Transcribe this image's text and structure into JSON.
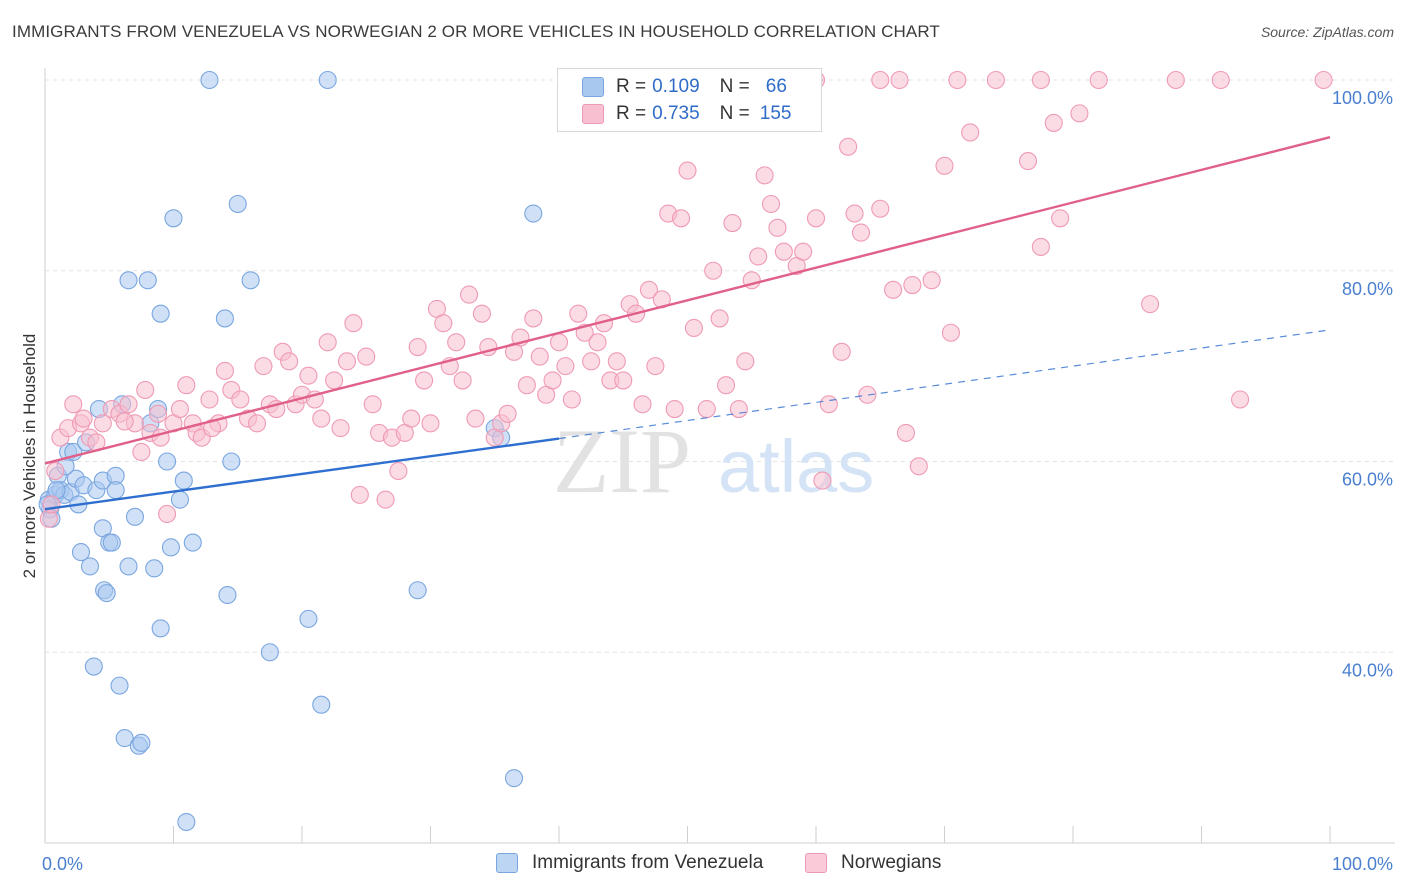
{
  "title": "IMMIGRANTS FROM VENEZUELA VS NORWEGIAN 2 OR MORE VEHICLES IN HOUSEHOLD CORRELATION CHART",
  "source": "Source: ZipAtlas.com",
  "watermark": {
    "zip": "ZIP",
    "atlas": "atlas"
  },
  "legend": {
    "rows": [
      {
        "r_label": "R =",
        "r_value": "0.109",
        "n_label": "N =",
        "n_value": "66"
      },
      {
        "r_label": "R =",
        "r_value": "0.735",
        "n_label": "N =",
        "n_value": "155"
      }
    ]
  },
  "colors": {
    "blue_fill": "#a9c8f0",
    "blue_stroke": "#7aa6e0",
    "blue_line": "#2f6fd0",
    "pink_fill": "#f7bfd0",
    "pink_stroke": "#ef9ab5",
    "pink_line": "#e0608a",
    "tick_text": "#4a7fd0",
    "grid": "#e3e3e3"
  },
  "chart_data": {
    "type": "scatter",
    "title": "IMMIGRANTS FROM VENEZUELA VS NORWEGIAN 2 OR MORE VEHICLES IN HOUSEHOLD CORRELATION CHART",
    "xlabel": "",
    "ylabel": "2 or more Vehicles in Household",
    "xlim": [
      0,
      100
    ],
    "ylim": [
      20,
      100
    ],
    "x_tick_labels": [
      "0.0%",
      "100.0%"
    ],
    "y_ticks": [
      40,
      60,
      80,
      100
    ],
    "y_tick_labels": [
      "40.0%",
      "60.0%",
      "80.0%",
      "100.0%"
    ],
    "grid": true,
    "legend_position": "bottom",
    "series": [
      {
        "name": "Immigrants from Venezuela",
        "color": "#a9c8f0",
        "trend": {
          "x": [
            0,
            40
          ],
          "y": [
            55.0,
            62.4
          ],
          "dashed_to": [
            100,
            73.8
          ]
        },
        "points": [
          [
            0.3,
            56.0
          ],
          [
            0.4,
            55.0
          ],
          [
            0.5,
            54.0
          ],
          [
            0.8,
            56.5
          ],
          [
            1.0,
            58.5
          ],
          [
            1.2,
            57.0
          ],
          [
            1.5,
            56.5
          ],
          [
            1.8,
            61.0
          ],
          [
            2.0,
            56.8
          ],
          [
            2.2,
            61.0
          ],
          [
            2.4,
            58.2
          ],
          [
            2.6,
            55.5
          ],
          [
            2.8,
            50.5
          ],
          [
            3.0,
            57.5
          ],
          [
            3.2,
            62.0
          ],
          [
            3.5,
            49.0
          ],
          [
            3.8,
            38.5
          ],
          [
            4.0,
            57.0
          ],
          [
            4.2,
            65.5
          ],
          [
            4.5,
            58.0
          ],
          [
            4.5,
            53.0
          ],
          [
            4.6,
            46.5
          ],
          [
            4.8,
            46.2
          ],
          [
            5.0,
            51.5
          ],
          [
            5.2,
            51.5
          ],
          [
            5.5,
            58.5
          ],
          [
            5.5,
            57.0
          ],
          [
            5.8,
            36.5
          ],
          [
            6.0,
            66.0
          ],
          [
            6.2,
            31.0
          ],
          [
            6.5,
            79.0
          ],
          [
            6.5,
            49.0
          ],
          [
            7.0,
            54.2
          ],
          [
            7.3,
            30.2
          ],
          [
            7.5,
            30.5
          ],
          [
            8.0,
            79.0
          ],
          [
            8.2,
            64.0
          ],
          [
            8.5,
            48.8
          ],
          [
            8.8,
            65.5
          ],
          [
            9.0,
            75.5
          ],
          [
            9.0,
            42.5
          ],
          [
            9.5,
            60.0
          ],
          [
            9.8,
            51.0
          ],
          [
            10.0,
            85.5
          ],
          [
            10.5,
            56.0
          ],
          [
            10.8,
            58.0
          ],
          [
            11.0,
            22.2
          ],
          [
            11.5,
            51.5
          ],
          [
            12.8,
            100.0
          ],
          [
            14.0,
            75.0
          ],
          [
            14.2,
            46.0
          ],
          [
            14.5,
            60.0
          ],
          [
            15.0,
            87.0
          ],
          [
            16.0,
            79.0
          ],
          [
            17.5,
            40.0
          ],
          [
            20.5,
            43.5
          ],
          [
            21.5,
            34.5
          ],
          [
            22.0,
            100.0
          ],
          [
            29.0,
            46.5
          ],
          [
            35.0,
            63.5
          ],
          [
            35.5,
            62.5
          ],
          [
            36.5,
            26.8
          ],
          [
            38.0,
            86.0
          ],
          [
            0.2,
            55.5
          ],
          [
            1.6,
            59.5
          ],
          [
            0.9,
            57.0
          ]
        ]
      },
      {
        "name": "Norwegians",
        "color": "#f7bfd0",
        "trend": {
          "x": [
            0,
            100
          ],
          "y": [
            59.8,
            94.0
          ]
        },
        "points": [
          [
            0.3,
            54.0
          ],
          [
            0.5,
            55.5
          ],
          [
            0.8,
            59.0
          ],
          [
            1.2,
            62.5
          ],
          [
            1.8,
            63.5
          ],
          [
            2.2,
            66.0
          ],
          [
            2.8,
            64.0
          ],
          [
            3.5,
            62.5
          ],
          [
            4.0,
            62.0
          ],
          [
            4.5,
            64.0
          ],
          [
            5.2,
            65.5
          ],
          [
            5.8,
            65.0
          ],
          [
            6.5,
            66.0
          ],
          [
            7.0,
            64.0
          ],
          [
            7.5,
            61.0
          ],
          [
            7.8,
            67.5
          ],
          [
            8.2,
            63.0
          ],
          [
            8.8,
            65.0
          ],
          [
            9.0,
            62.5
          ],
          [
            9.5,
            54.5
          ],
          [
            10.0,
            64.0
          ],
          [
            10.5,
            65.5
          ],
          [
            11.0,
            68.0
          ],
          [
            11.5,
            64.0
          ],
          [
            11.8,
            63.0
          ],
          [
            12.2,
            62.5
          ],
          [
            12.8,
            66.5
          ],
          [
            13.5,
            64.0
          ],
          [
            14.0,
            69.5
          ],
          [
            14.5,
            67.5
          ],
          [
            15.2,
            66.5
          ],
          [
            15.8,
            64.5
          ],
          [
            16.5,
            64.0
          ],
          [
            17.0,
            70.0
          ],
          [
            17.5,
            66.0
          ],
          [
            18.0,
            65.5
          ],
          [
            18.5,
            71.5
          ],
          [
            19.0,
            70.5
          ],
          [
            19.5,
            66.0
          ],
          [
            20.0,
            67.0
          ],
          [
            20.5,
            69.0
          ],
          [
            21.0,
            66.5
          ],
          [
            21.5,
            64.5
          ],
          [
            22.0,
            72.5
          ],
          [
            22.5,
            68.5
          ],
          [
            23.0,
            63.5
          ],
          [
            23.5,
            70.5
          ],
          [
            24.0,
            74.5
          ],
          [
            24.5,
            56.5
          ],
          [
            25.0,
            71.0
          ],
          [
            25.5,
            66.0
          ],
          [
            26.0,
            63.0
          ],
          [
            26.5,
            56.0
          ],
          [
            27.0,
            62.5
          ],
          [
            27.5,
            59.0
          ],
          [
            28.0,
            63.0
          ],
          [
            28.5,
            64.5
          ],
          [
            29.0,
            72.0
          ],
          [
            29.5,
            68.5
          ],
          [
            30.0,
            64.0
          ],
          [
            30.5,
            76.0
          ],
          [
            31.0,
            74.5
          ],
          [
            31.5,
            70.0
          ],
          [
            32.0,
            72.5
          ],
          [
            32.5,
            68.5
          ],
          [
            33.0,
            77.5
          ],
          [
            33.5,
            64.5
          ],
          [
            34.0,
            75.5
          ],
          [
            34.5,
            72.0
          ],
          [
            35.0,
            62.5
          ],
          [
            35.5,
            64.0
          ],
          [
            36.0,
            65.0
          ],
          [
            36.5,
            71.5
          ],
          [
            37.0,
            73.0
          ],
          [
            37.5,
            68.0
          ],
          [
            38.0,
            75.0
          ],
          [
            38.5,
            71.0
          ],
          [
            39.0,
            67.0
          ],
          [
            39.5,
            68.5
          ],
          [
            40.0,
            72.5
          ],
          [
            40.5,
            70.0
          ],
          [
            41.0,
            66.5
          ],
          [
            41.5,
            75.5
          ],
          [
            42.0,
            73.5
          ],
          [
            42.5,
            70.5
          ],
          [
            43.0,
            72.5
          ],
          [
            43.5,
            74.5
          ],
          [
            44.0,
            68.5
          ],
          [
            44.5,
            70.5
          ],
          [
            45.0,
            68.5
          ],
          [
            45.5,
            76.5
          ],
          [
            46.0,
            75.5
          ],
          [
            46.5,
            66.0
          ],
          [
            47.0,
            78.0
          ],
          [
            47.5,
            70.0
          ],
          [
            48.0,
            77.0
          ],
          [
            48.5,
            86.0
          ],
          [
            49.0,
            65.5
          ],
          [
            49.5,
            85.5
          ],
          [
            50.0,
            90.5
          ],
          [
            50.5,
            74.0
          ],
          [
            51.5,
            65.5
          ],
          [
            52.0,
            80.0
          ],
          [
            52.5,
            75.0
          ],
          [
            53.0,
            68.0
          ],
          [
            53.5,
            85.0
          ],
          [
            54.0,
            65.5
          ],
          [
            54.5,
            70.5
          ],
          [
            55.0,
            79.0
          ],
          [
            55.5,
            81.5
          ],
          [
            56.0,
            90.0
          ],
          [
            56.5,
            87.0
          ],
          [
            57.0,
            84.5
          ],
          [
            57.5,
            82.0
          ],
          [
            58.5,
            80.5
          ],
          [
            59.0,
            82.0
          ],
          [
            60.0,
            85.5
          ],
          [
            60.5,
            58.0
          ],
          [
            61.0,
            66.0
          ],
          [
            62.0,
            71.5
          ],
          [
            62.5,
            93.0
          ],
          [
            63.0,
            86.0
          ],
          [
            63.5,
            84.0
          ],
          [
            64.0,
            67.0
          ],
          [
            65.0,
            86.5
          ],
          [
            66.0,
            78.0
          ],
          [
            67.0,
            63.0
          ],
          [
            67.5,
            78.5
          ],
          [
            68.0,
            59.5
          ],
          [
            69.0,
            79.0
          ],
          [
            70.0,
            91.0
          ],
          [
            70.5,
            73.5
          ],
          [
            72.0,
            94.5
          ],
          [
            76.5,
            91.5
          ],
          [
            77.5,
            82.5
          ],
          [
            78.5,
            95.5
          ],
          [
            79.0,
            85.5
          ],
          [
            80.5,
            96.5
          ],
          [
            86.0,
            76.5
          ],
          [
            93.0,
            66.5
          ],
          [
            60.0,
            100.0
          ],
          [
            65.0,
            100.0
          ],
          [
            66.5,
            100.0
          ],
          [
            71.0,
            100.0
          ],
          [
            74.0,
            100.0
          ],
          [
            77.5,
            100.0
          ],
          [
            82.0,
            100.0
          ],
          [
            88.0,
            100.0
          ],
          [
            91.5,
            100.0
          ],
          [
            99.5,
            100.0
          ],
          [
            59.8,
            100.0
          ],
          [
            53.5,
            100.0
          ],
          [
            3.0,
            64.5
          ],
          [
            6.2,
            64.2
          ],
          [
            13.0,
            63.5
          ]
        ]
      }
    ]
  },
  "bottom_legend": [
    {
      "label": "Immigrants from Venezuela"
    },
    {
      "label": "Norwegians"
    }
  ]
}
